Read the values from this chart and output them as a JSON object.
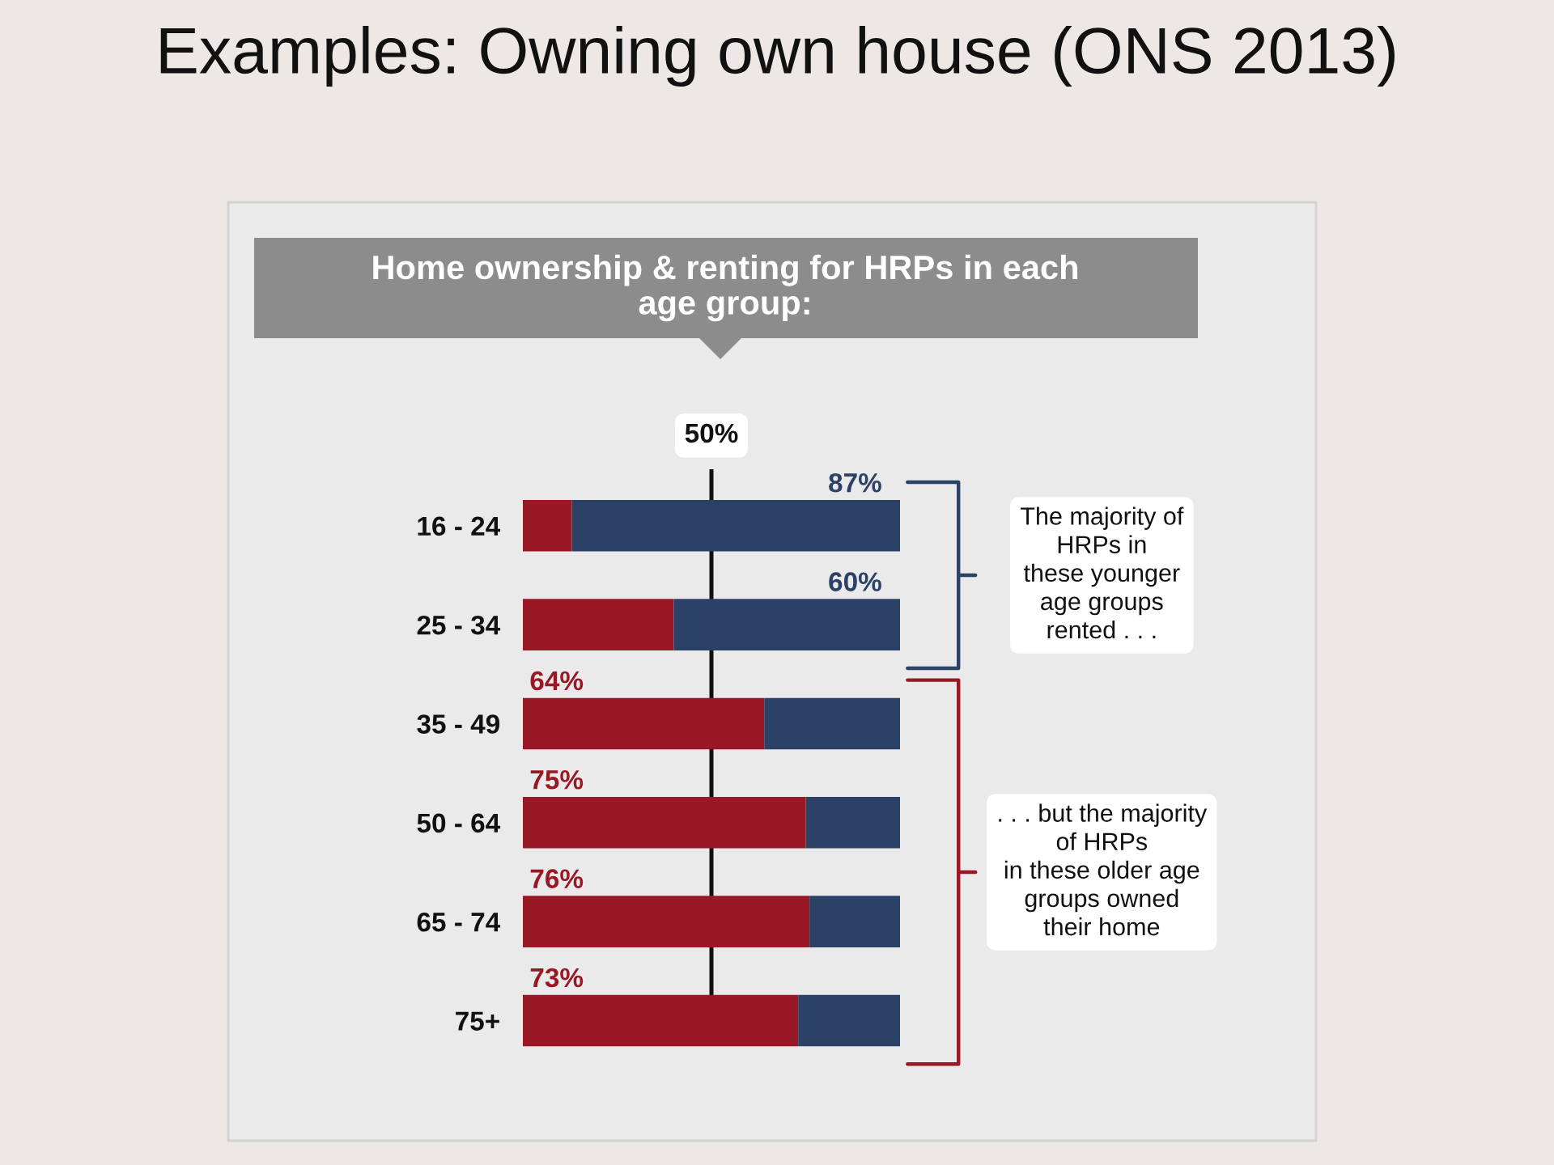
{
  "chart_data": {
    "type": "bar",
    "orientation": "horizontal",
    "stacked": true,
    "title": "Examples: Owning own house (ONS 2013)",
    "subtitle": "Home ownership & renting for HRPs in each\nage group:",
    "categories": [
      "16 - 24",
      "25 - 34",
      "35 - 49",
      "50 - 64",
      "65 - 74",
      "75+"
    ],
    "series": [
      {
        "color": "#9a1826",
        "values": [
          13,
          40,
          64,
          75,
          76,
          73
        ],
        "value_labels": [
          null,
          null,
          "64%",
          "75%",
          "76%",
          "73%"
        ]
      },
      {
        "color": "#2b4166",
        "values": [
          87,
          60,
          36,
          25,
          24,
          27
        ],
        "value_labels": [
          "87%",
          "60%",
          null,
          null,
          null,
          null
        ]
      }
    ],
    "xlim": [
      0,
      100
    ],
    "ref_lines": [
      {
        "axis": "x",
        "value": 50,
        "label": "50%",
        "color": "#111111"
      }
    ],
    "annotations": [
      "The majority of\nHRPs in\nthese younger\nage groups\nrented . . .",
      ". . . but the majority\nof HRPs\nin these older age\ngroups owned\ntheir home"
    ],
    "tick_labels": "y"
  }
}
